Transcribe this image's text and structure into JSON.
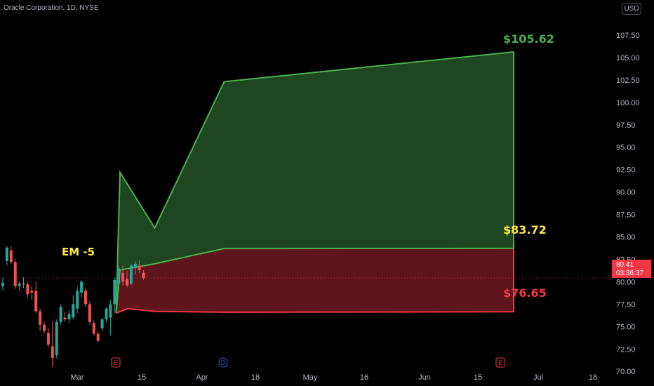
{
  "header": {
    "symbol": "Oracle Corporation, 1D, NYSE",
    "currency": "USD"
  },
  "colors": {
    "green": "#4caf50",
    "green_fill": "#1e4620",
    "red": "#f23645",
    "red_fill": "#5e161c",
    "yellow": "#ffeb3b",
    "up": "#26a69a",
    "down": "#ef5350"
  },
  "annotation": "EM -5",
  "price_labels": {
    "upper": "$105.62",
    "middle": "$83.72",
    "lower": "$76.65"
  },
  "last_price": {
    "value": "80.41",
    "countdown": "03:36:37"
  },
  "chart_data": {
    "type": "area",
    "ylim": [
      69.0,
      109.0
    ],
    "y_ticks": [
      "70.00",
      "72.50",
      "75.00",
      "77.50",
      "80.00",
      "82.50",
      "85.00",
      "87.50",
      "90.00",
      "92.50",
      "95.00",
      "97.50",
      "100.00",
      "102.50",
      "105.00",
      "107.50"
    ],
    "x_ticks": [
      "Mar",
      "15",
      "Apr",
      "18",
      "May",
      "16",
      "Jun",
      "15",
      "Jul",
      "18"
    ],
    "upper_band": [
      {
        "x": "2023-03-10",
        "y": 76.5
      },
      {
        "x": "2023-03-11",
        "y": 92.2
      },
      {
        "x": "2023-03-20",
        "y": 86.0
      },
      {
        "x": "2023-04-07",
        "y": 102.3
      },
      {
        "x": "2023-06-21",
        "y": 105.62
      }
    ],
    "middle_line": [
      {
        "x": "2023-03-10",
        "y": 76.5
      },
      {
        "x": "2023-03-11",
        "y": 81.3
      },
      {
        "x": "2023-03-20",
        "y": 82.0
      },
      {
        "x": "2023-04-07",
        "y": 83.7
      },
      {
        "x": "2023-06-21",
        "y": 83.72
      }
    ],
    "lower_band": [
      {
        "x": "2023-03-10",
        "y": 76.5
      },
      {
        "x": "2023-03-13",
        "y": 77.0
      },
      {
        "x": "2023-03-20",
        "y": 76.7
      },
      {
        "x": "2023-04-07",
        "y": 76.6
      },
      {
        "x": "2023-06-21",
        "y": 76.65
      }
    ],
    "candles": [
      {
        "o": 79.5,
        "h": 80.5,
        "l": 79.0,
        "c": 79.9
      },
      {
        "o": 82.3,
        "h": 84.0,
        "l": 81.8,
        "c": 83.8
      },
      {
        "o": 83.5,
        "h": 84.0,
        "l": 82.0,
        "c": 82.2
      },
      {
        "o": 82.2,
        "h": 82.5,
        "l": 79.2,
        "c": 79.5
      },
      {
        "o": 79.5,
        "h": 80.0,
        "l": 79.0,
        "c": 79.8
      },
      {
        "o": 79.8,
        "h": 80.5,
        "l": 79.3,
        "c": 79.7
      },
      {
        "o": 79.7,
        "h": 80.0,
        "l": 78.2,
        "c": 78.6
      },
      {
        "o": 79.0,
        "h": 79.5,
        "l": 78.0,
        "c": 78.8
      },
      {
        "o": 79.0,
        "h": 80.0,
        "l": 76.5,
        "c": 76.7
      },
      {
        "o": 76.7,
        "h": 77.0,
        "l": 74.5,
        "c": 75.2
      },
      {
        "o": 75.2,
        "h": 75.5,
        "l": 74.2,
        "c": 74.5
      },
      {
        "o": 74.3,
        "h": 74.8,
        "l": 72.7,
        "c": 73.0
      },
      {
        "o": 72.8,
        "h": 75.6,
        "l": 70.5,
        "c": 71.5
      },
      {
        "o": 71.8,
        "h": 75.8,
        "l": 71.5,
        "c": 75.5
      },
      {
        "o": 75.5,
        "h": 77.5,
        "l": 75.2,
        "c": 77.2
      },
      {
        "o": 76.0,
        "h": 76.6,
        "l": 75.5,
        "c": 75.8
      },
      {
        "o": 75.8,
        "h": 76.8,
        "l": 75.4,
        "c": 76.4
      },
      {
        "o": 76.0,
        "h": 78.5,
        "l": 75.8,
        "c": 77.5
      },
      {
        "o": 77.0,
        "h": 79.5,
        "l": 76.5,
        "c": 79.0
      },
      {
        "o": 78.8,
        "h": 80.2,
        "l": 78.2,
        "c": 80.0
      },
      {
        "o": 79.0,
        "h": 79.3,
        "l": 77.2,
        "c": 77.5
      },
      {
        "o": 77.5,
        "h": 77.8,
        "l": 75.2,
        "c": 75.5
      },
      {
        "o": 75.4,
        "h": 75.7,
        "l": 74.0,
        "c": 74.2
      },
      {
        "o": 74.2,
        "h": 74.5,
        "l": 73.2,
        "c": 73.4
      },
      {
        "o": 74.8,
        "h": 76.0,
        "l": 74.5,
        "c": 75.8
      },
      {
        "o": 75.8,
        "h": 77.2,
        "l": 75.5,
        "c": 77.0
      },
      {
        "o": 76.0,
        "h": 78.0,
        "l": 74.0,
        "c": 77.5
      },
      {
        "o": 77.5,
        "h": 80.5,
        "l": 76.5,
        "c": 80.2
      },
      {
        "o": 79.8,
        "h": 81.8,
        "l": 79.5,
        "c": 81.5
      },
      {
        "o": 81.0,
        "h": 81.8,
        "l": 79.6,
        "c": 80.0
      },
      {
        "o": 80.3,
        "h": 81.2,
        "l": 79.4,
        "c": 79.6
      },
      {
        "o": 79.8,
        "h": 82.0,
        "l": 79.6,
        "c": 81.8
      },
      {
        "o": 81.5,
        "h": 82.3,
        "l": 80.8,
        "c": 82.0
      },
      {
        "o": 81.8,
        "h": 82.4,
        "l": 81.0,
        "c": 81.3
      },
      {
        "o": 81.0,
        "h": 81.3,
        "l": 80.2,
        "c": 80.4
      }
    ],
    "event_markers": [
      {
        "label": "E",
        "color": "red"
      },
      {
        "label": "D",
        "color": "blue"
      },
      {
        "label": "E",
        "color": "red"
      }
    ]
  }
}
